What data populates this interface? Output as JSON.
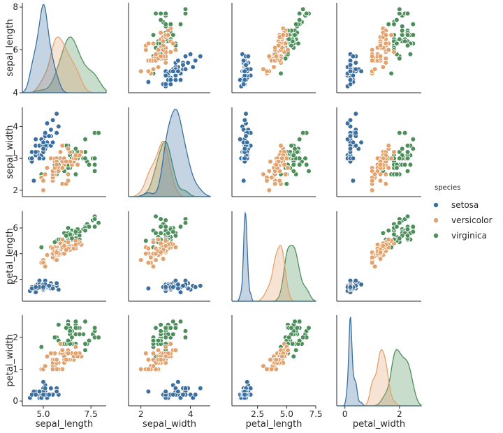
{
  "chart_data": {
    "type": "scatter",
    "layout": "pairplot",
    "variables": [
      "sepal_length",
      "sepal_width",
      "petal_length",
      "petal_width"
    ],
    "axis_labels": {
      "x": [
        "sepal_length",
        "sepal_width",
        "petal_length",
        "petal_width"
      ],
      "y": [
        "sepal_length",
        "sepal_width",
        "petal_length",
        "petal_width"
      ]
    },
    "xlim": [
      [
        3.9,
        8.3
      ],
      [
        1.5,
        4.8
      ],
      [
        0.3,
        7.5
      ],
      [
        -0.3,
        2.8
      ]
    ],
    "ylim": [
      [
        4.0,
        8.2
      ],
      [
        1.8,
        4.6
      ],
      [
        0.3,
        7.3
      ],
      [
        -0.15,
        2.7
      ]
    ],
    "xticks": [
      [
        5.0,
        7.5
      ],
      [
        2,
        4
      ],
      [
        2.5,
        5.0,
        7.5
      ],
      [
        0,
        2
      ]
    ],
    "xtick_labels": [
      [
        "5.0",
        "7.5"
      ],
      [
        "2",
        "4"
      ],
      [
        "2.5",
        "5.0",
        "7.5"
      ],
      [
        "0",
        "2"
      ]
    ],
    "yticks": [
      [
        4,
        6,
        8
      ],
      [
        2,
        3,
        4
      ],
      [
        2,
        4,
        6
      ],
      [
        0,
        1,
        2
      ]
    ],
    "ytick_labels": [
      [
        "4",
        "6",
        "8"
      ],
      [
        "2",
        "3",
        "4"
      ],
      [
        "2",
        "4",
        "6"
      ],
      [
        "0",
        "1",
        "2"
      ]
    ],
    "grid": false,
    "legend": {
      "title": "species",
      "position": "right",
      "entries": [
        "setosa",
        "versicolor",
        "virginica"
      ]
    },
    "colors": {
      "setosa": "#3a6fa0",
      "versicolor": "#e2a26d",
      "virginica": "#4c8f5a"
    },
    "series": [
      {
        "name": "setosa",
        "kde_peak": 0.9,
        "values": [
          [
            5.1,
            3.5,
            1.4,
            0.2
          ],
          [
            4.9,
            3.0,
            1.4,
            0.2
          ],
          [
            4.7,
            3.2,
            1.3,
            0.2
          ],
          [
            4.6,
            3.1,
            1.5,
            0.2
          ],
          [
            5.0,
            3.6,
            1.4,
            0.2
          ],
          [
            5.4,
            3.9,
            1.7,
            0.4
          ],
          [
            4.6,
            3.4,
            1.4,
            0.3
          ],
          [
            5.0,
            3.4,
            1.5,
            0.2
          ],
          [
            4.4,
            2.9,
            1.4,
            0.2
          ],
          [
            4.9,
            3.1,
            1.5,
            0.1
          ],
          [
            5.4,
            3.7,
            1.5,
            0.2
          ],
          [
            4.8,
            3.4,
            1.6,
            0.2
          ],
          [
            4.8,
            3.0,
            1.4,
            0.1
          ],
          [
            4.3,
            3.0,
            1.1,
            0.1
          ],
          [
            5.8,
            4.0,
            1.2,
            0.2
          ],
          [
            5.7,
            4.4,
            1.5,
            0.4
          ],
          [
            5.4,
            3.9,
            1.3,
            0.4
          ],
          [
            5.1,
            3.5,
            1.4,
            0.3
          ],
          [
            5.7,
            3.8,
            1.7,
            0.3
          ],
          [
            5.1,
            3.8,
            1.5,
            0.3
          ],
          [
            5.4,
            3.4,
            1.7,
            0.2
          ],
          [
            5.1,
            3.7,
            1.5,
            0.4
          ],
          [
            4.6,
            3.6,
            1.0,
            0.2
          ],
          [
            5.1,
            3.3,
            1.7,
            0.5
          ],
          [
            4.8,
            3.4,
            1.9,
            0.2
          ],
          [
            5.0,
            3.0,
            1.6,
            0.2
          ],
          [
            5.0,
            3.4,
            1.6,
            0.4
          ],
          [
            5.2,
            3.5,
            1.5,
            0.2
          ],
          [
            5.2,
            3.4,
            1.4,
            0.2
          ],
          [
            4.7,
            3.2,
            1.6,
            0.2
          ],
          [
            4.8,
            3.1,
            1.6,
            0.2
          ],
          [
            5.4,
            3.4,
            1.5,
            0.4
          ],
          [
            5.2,
            4.1,
            1.5,
            0.1
          ],
          [
            5.5,
            4.2,
            1.4,
            0.2
          ],
          [
            4.9,
            3.1,
            1.5,
            0.2
          ],
          [
            5.0,
            3.2,
            1.2,
            0.2
          ],
          [
            5.5,
            3.5,
            1.3,
            0.2
          ],
          [
            4.9,
            3.6,
            1.4,
            0.1
          ],
          [
            4.4,
            3.0,
            1.3,
            0.2
          ],
          [
            5.1,
            3.4,
            1.5,
            0.2
          ],
          [
            5.0,
            3.5,
            1.3,
            0.3
          ],
          [
            4.5,
            2.3,
            1.3,
            0.3
          ],
          [
            4.4,
            3.2,
            1.3,
            0.2
          ],
          [
            5.0,
            3.5,
            1.6,
            0.6
          ],
          [
            5.1,
            3.8,
            1.9,
            0.4
          ],
          [
            4.8,
            3.0,
            1.4,
            0.3
          ],
          [
            5.1,
            3.8,
            1.6,
            0.2
          ],
          [
            4.6,
            3.2,
            1.4,
            0.2
          ],
          [
            5.3,
            3.7,
            1.5,
            0.2
          ],
          [
            5.0,
            3.3,
            1.4,
            0.2
          ]
        ]
      },
      {
        "name": "versicolor",
        "kde_peak": 0.55,
        "values": [
          [
            7.0,
            3.2,
            4.7,
            1.4
          ],
          [
            6.4,
            3.2,
            4.5,
            1.5
          ],
          [
            6.9,
            3.1,
            4.9,
            1.5
          ],
          [
            5.5,
            2.3,
            4.0,
            1.3
          ],
          [
            6.5,
            2.8,
            4.6,
            1.5
          ],
          [
            5.7,
            2.8,
            4.5,
            1.3
          ],
          [
            6.3,
            3.3,
            4.7,
            1.6
          ],
          [
            4.9,
            2.4,
            3.3,
            1.0
          ],
          [
            6.6,
            2.9,
            4.6,
            1.3
          ],
          [
            5.2,
            2.7,
            3.9,
            1.4
          ],
          [
            5.0,
            2.0,
            3.5,
            1.0
          ],
          [
            5.9,
            3.0,
            4.2,
            1.5
          ],
          [
            6.0,
            2.2,
            4.0,
            1.0
          ],
          [
            6.1,
            2.9,
            4.7,
            1.4
          ],
          [
            5.6,
            2.9,
            3.6,
            1.3
          ],
          [
            6.7,
            3.1,
            4.4,
            1.4
          ],
          [
            5.6,
            3.0,
            4.5,
            1.5
          ],
          [
            5.8,
            2.7,
            4.1,
            1.0
          ],
          [
            6.2,
            2.2,
            4.5,
            1.5
          ],
          [
            5.6,
            2.5,
            3.9,
            1.1
          ],
          [
            5.9,
            3.2,
            4.8,
            1.8
          ],
          [
            6.1,
            2.8,
            4.0,
            1.3
          ],
          [
            6.3,
            2.5,
            4.9,
            1.5
          ],
          [
            6.1,
            2.8,
            4.7,
            1.2
          ],
          [
            6.4,
            2.9,
            4.3,
            1.3
          ],
          [
            6.6,
            3.0,
            4.4,
            1.4
          ],
          [
            6.8,
            2.8,
            4.8,
            1.4
          ],
          [
            6.7,
            3.0,
            5.0,
            1.7
          ],
          [
            6.0,
            2.9,
            4.5,
            1.5
          ],
          [
            5.7,
            2.6,
            3.5,
            1.0
          ],
          [
            5.5,
            2.4,
            3.8,
            1.1
          ],
          [
            5.5,
            2.4,
            3.7,
            1.0
          ],
          [
            5.8,
            2.7,
            3.9,
            1.2
          ],
          [
            6.0,
            2.7,
            5.1,
            1.6
          ],
          [
            5.4,
            3.0,
            4.5,
            1.5
          ],
          [
            6.0,
            3.4,
            4.5,
            1.6
          ],
          [
            6.7,
            3.1,
            4.7,
            1.5
          ],
          [
            6.3,
            2.3,
            4.4,
            1.3
          ],
          [
            5.6,
            3.0,
            4.1,
            1.3
          ],
          [
            5.5,
            2.5,
            4.0,
            1.3
          ],
          [
            5.5,
            2.6,
            4.4,
            1.2
          ],
          [
            6.1,
            3.0,
            4.6,
            1.4
          ],
          [
            5.8,
            2.6,
            4.0,
            1.2
          ],
          [
            5.0,
            2.3,
            3.3,
            1.0
          ],
          [
            5.6,
            2.7,
            4.2,
            1.3
          ],
          [
            5.7,
            3.0,
            4.2,
            1.2
          ],
          [
            5.7,
            2.9,
            4.2,
            1.3
          ],
          [
            6.2,
            2.9,
            4.3,
            1.3
          ],
          [
            5.1,
            2.5,
            3.0,
            1.1
          ],
          [
            5.7,
            2.8,
            4.1,
            1.3
          ]
        ]
      },
      {
        "name": "virginica",
        "kde_peak": 0.58,
        "values": [
          [
            6.3,
            3.3,
            6.0,
            2.5
          ],
          [
            5.8,
            2.7,
            5.1,
            1.9
          ],
          [
            7.1,
            3.0,
            5.9,
            2.1
          ],
          [
            6.3,
            2.9,
            5.6,
            1.8
          ],
          [
            6.5,
            3.0,
            5.8,
            2.2
          ],
          [
            7.6,
            3.0,
            6.6,
            2.1
          ],
          [
            4.9,
            2.5,
            4.5,
            1.7
          ],
          [
            7.3,
            2.9,
            6.3,
            1.8
          ],
          [
            6.7,
            2.5,
            5.8,
            1.8
          ],
          [
            7.2,
            3.6,
            6.1,
            2.5
          ],
          [
            6.5,
            3.2,
            5.1,
            2.0
          ],
          [
            6.4,
            2.7,
            5.3,
            1.9
          ],
          [
            6.8,
            3.0,
            5.5,
            2.1
          ],
          [
            5.7,
            2.5,
            5.0,
            2.0
          ],
          [
            5.8,
            2.8,
            5.1,
            2.4
          ],
          [
            6.4,
            3.2,
            5.3,
            2.3
          ],
          [
            6.5,
            3.0,
            5.5,
            1.8
          ],
          [
            7.7,
            3.8,
            6.7,
            2.2
          ],
          [
            7.7,
            2.6,
            6.9,
            2.3
          ],
          [
            6.0,
            2.2,
            5.0,
            1.5
          ],
          [
            6.9,
            3.2,
            5.7,
            2.3
          ],
          [
            5.6,
            2.8,
            4.9,
            2.0
          ],
          [
            7.7,
            2.8,
            6.7,
            2.0
          ],
          [
            6.3,
            2.7,
            4.9,
            1.8
          ],
          [
            6.7,
            3.3,
            5.7,
            2.1
          ],
          [
            7.2,
            3.2,
            6.0,
            1.8
          ],
          [
            6.2,
            2.8,
            4.8,
            1.8
          ],
          [
            6.1,
            3.0,
            4.9,
            1.8
          ],
          [
            6.4,
            2.8,
            5.6,
            2.1
          ],
          [
            7.2,
            3.0,
            5.8,
            1.6
          ],
          [
            7.4,
            2.8,
            6.1,
            1.9
          ],
          [
            7.9,
            3.8,
            6.4,
            2.0
          ],
          [
            6.4,
            2.8,
            5.6,
            2.2
          ],
          [
            6.3,
            2.8,
            5.1,
            1.5
          ],
          [
            6.1,
            2.6,
            5.6,
            1.4
          ],
          [
            7.7,
            3.0,
            6.1,
            2.3
          ],
          [
            6.3,
            3.4,
            5.6,
            2.4
          ],
          [
            6.4,
            3.1,
            5.5,
            1.8
          ],
          [
            6.0,
            3.0,
            4.8,
            1.8
          ],
          [
            6.9,
            3.1,
            5.4,
            2.1
          ],
          [
            6.7,
            3.1,
            5.6,
            2.4
          ],
          [
            6.9,
            3.1,
            5.1,
            2.3
          ],
          [
            5.8,
            2.7,
            5.1,
            1.9
          ],
          [
            6.8,
            3.2,
            5.9,
            2.3
          ],
          [
            6.7,
            3.3,
            5.7,
            2.5
          ],
          [
            6.7,
            3.0,
            5.2,
            2.3
          ],
          [
            6.3,
            2.5,
            5.0,
            1.9
          ],
          [
            6.5,
            3.0,
            5.2,
            2.0
          ],
          [
            6.2,
            3.4,
            5.4,
            2.3
          ],
          [
            5.9,
            3.0,
            5.1,
            1.8
          ]
        ]
      }
    ]
  }
}
